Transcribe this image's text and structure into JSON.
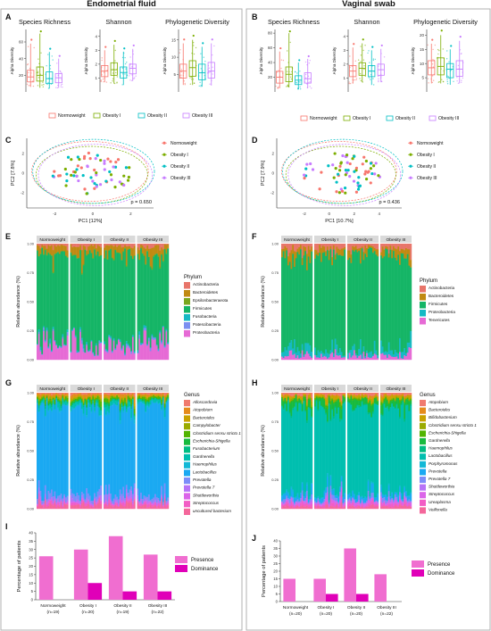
{
  "headers": {
    "left": "Endometrial fluid",
    "right": "Vaginal swab"
  },
  "panel_letters": {
    "A": "A",
    "B": "B",
    "C": "C",
    "D": "D",
    "E": "E",
    "F": "F",
    "G": "G",
    "H": "H",
    "I": "I",
    "J": "J"
  },
  "groups": [
    "Normoweight",
    "Obesity I",
    "Obesity II",
    "Obesity III"
  ],
  "group_colors": [
    "#f8766d",
    "#7cae00",
    "#00bfc4",
    "#c77cff"
  ],
  "alpha": {
    "titles": [
      "Species Richness",
      "Shannon",
      "Phylogenetic Diversity"
    ],
    "ylabel": "Alpha Diversity",
    "left": {
      "richness": {
        "ticks": [
          "20",
          "40",
          "60"
        ],
        "ylim": [
          0,
          75
        ],
        "boxes": [
          [
            6,
            12,
            18,
            26,
            58
          ],
          [
            5,
            13,
            20,
            30,
            70
          ],
          [
            4,
            10,
            16,
            24,
            48
          ],
          [
            5,
            11,
            17,
            22,
            40
          ]
        ]
      },
      "shannon": {
        "ticks": [
          "1",
          "2",
          "3",
          "4"
        ],
        "ylim": [
          0,
          4.5
        ],
        "boxes": [
          [
            0.7,
            1.1,
            1.5,
            1.9,
            3.0
          ],
          [
            0.6,
            1.2,
            1.6,
            2.1,
            3.4
          ],
          [
            0.5,
            1.0,
            1.4,
            1.8,
            2.9
          ],
          [
            0.8,
            1.3,
            1.7,
            2.0,
            3.1
          ]
        ]
      },
      "pd": {
        "ticks": [
          "5",
          "10",
          "15"
        ],
        "ylim": [
          0,
          18
        ],
        "boxes": [
          [
            2,
            4,
            6,
            8,
            14
          ],
          [
            2,
            4.5,
            7,
            9,
            15
          ],
          [
            1.5,
            3.5,
            5.5,
            8,
            13
          ],
          [
            2,
            4,
            6,
            8.5,
            14
          ]
        ]
      }
    },
    "right": {
      "richness": {
        "ticks": [
          "20",
          "40",
          "60",
          "80"
        ],
        "ylim": [
          0,
          85
        ],
        "boxes": [
          [
            5,
            12,
            20,
            28,
            55
          ],
          [
            6,
            14,
            24,
            34,
            80
          ],
          [
            4,
            10,
            16,
            22,
            40
          ],
          [
            5,
            12,
            18,
            26,
            45
          ]
        ]
      },
      "shannon": {
        "ticks": [
          "1",
          "2",
          "3",
          "4"
        ],
        "ylim": [
          0,
          4.5
        ],
        "boxes": [
          [
            0.6,
            1.1,
            1.5,
            1.9,
            3.2
          ],
          [
            0.7,
            1.2,
            1.7,
            2.1,
            3.5
          ],
          [
            0.5,
            1.1,
            1.5,
            1.9,
            3.0
          ],
          [
            0.7,
            1.2,
            1.6,
            2.0,
            3.1
          ]
        ]
      },
      "pd": {
        "ticks": [
          "5",
          "10",
          "15",
          "20"
        ],
        "ylim": [
          0,
          22
        ],
        "boxes": [
          [
            3,
            6,
            8.5,
            11,
            17
          ],
          [
            3,
            6,
            9,
            12,
            20
          ],
          [
            2.5,
            5,
            8,
            10,
            15
          ],
          [
            3,
            5.5,
            8,
            11,
            18
          ]
        ]
      }
    }
  },
  "pcoa": {
    "left": {
      "xlabel": "PC1  [12%]",
      "ylabel": "PC2  [7.8%]",
      "p": "p = 0.650",
      "xticks": [
        "-2",
        "0",
        "2"
      ],
      "yticks": [
        "2",
        "0",
        "-2"
      ]
    },
    "right": {
      "xlabel": "PC1  [10.7%]",
      "ylabel": "PC2  [7.9%]",
      "p": "p = 0.436",
      "xticks": [
        "-2",
        "0",
        "2",
        "4"
      ],
      "yticks": [
        "2",
        "0",
        "-2"
      ]
    }
  },
  "phylum": {
    "ylabel": "Relative abundance (%)",
    "title": "Phylum",
    "yticks": [
      "1.00",
      "0.75",
      "0.50",
      "0.25",
      "0.00"
    ],
    "left": {
      "taxa": [
        "Actinobacteria",
        "Bacteroidetes",
        "Epsilonbacteraeota",
        "Firmicutes",
        "Fusobacteria",
        "Patescibacteria",
        "Proteobacteria"
      ],
      "colors": [
        "#e8756a",
        "#c08a12",
        "#7aa71e",
        "#15b566",
        "#16b9c4",
        "#7b8ff0",
        "#e66ad5"
      ],
      "fractions": [
        0.02,
        0.06,
        0.005,
        0.78,
        0.01,
        0.01,
        0.115
      ]
    },
    "right": {
      "taxa": [
        "Actinobacteria",
        "Bacteroidetes",
        "Firmicutes",
        "Proteobacteria",
        "Tenericutes"
      ],
      "colors": [
        "#e8756a",
        "#c08a12",
        "#15b566",
        "#16b9c4",
        "#e66ad5"
      ],
      "fractions": [
        0.04,
        0.06,
        0.82,
        0.05,
        0.03
      ]
    }
  },
  "genus": {
    "ylabel": "Relative abundance (%)",
    "title": "Genus",
    "yticks": [
      "1.00",
      "0.75",
      "0.50",
      "0.25",
      "0.00"
    ],
    "left": {
      "taxa": [
        "Alloscardovia",
        "Atopobium",
        "Bacteroides",
        "Campylobacter",
        "Clostridium sensu stricto 1",
        "Escherichia-Shigella",
        "Fusobacterium",
        "Gardnerella",
        "Haemophilus",
        "Lactobacillus",
        "Prevotella",
        "Prevotella 7",
        "Shuttleworthia",
        "Streptococcus",
        "uncultured bacterium"
      ],
      "colors": [
        "#f07a6e",
        "#e58b1c",
        "#c9a200",
        "#9aab00",
        "#52b400",
        "#18ba3e",
        "#00bd83",
        "#00bfaf",
        "#12b8d6",
        "#1aa9f2",
        "#7d8df9",
        "#b773f7",
        "#db64e9",
        "#f25dc5",
        "#f4679b"
      ],
      "fractions": [
        0.01,
        0.02,
        0.01,
        0.01,
        0.02,
        0.01,
        0.01,
        0.03,
        0.01,
        0.75,
        0.04,
        0.02,
        0.01,
        0.02,
        0.03
      ]
    },
    "right": {
      "taxa": [
        "Atopobium",
        "Bacteroides",
        "Bifidobacterium",
        "Clostridium sensu stricto 1",
        "Escherichia-Shigella",
        "Gardnerella",
        "Haemophilus",
        "Lactobacillus",
        "Porphyromonas",
        "Prevotella",
        "Prevotella 7",
        "Shuttleworthia",
        "Streptococcus",
        "Ureaplasma",
        "Veillonella"
      ],
      "colors": [
        "#f07a6e",
        "#e58b1c",
        "#c9a200",
        "#9aab00",
        "#52b400",
        "#18ba3e",
        "#00bd83",
        "#00bfaf",
        "#12b8d6",
        "#1aa9f2",
        "#7d8df9",
        "#b773f7",
        "#db64e9",
        "#f25dc5",
        "#f4679b"
      ],
      "fractions": [
        0.02,
        0.01,
        0.02,
        0.01,
        0.01,
        0.06,
        0.01,
        0.72,
        0.01,
        0.04,
        0.02,
        0.01,
        0.02,
        0.02,
        0.02
      ]
    }
  },
  "chart_data": [
    {
      "type": "bar",
      "panel": "I",
      "categories": [
        "Normoweight\n(n=19)",
        "Obesity I\n(n=20)",
        "Obesity II\n(n=19)",
        "Obesity III\n(n=22)"
      ],
      "series": [
        {
          "name": "Presence",
          "values": [
            26,
            30,
            38,
            27
          ]
        },
        {
          "name": "Dominance",
          "values": [
            0,
            10,
            5,
            5
          ]
        }
      ],
      "ylabel": "Percentage of patients",
      "ylim": [
        0,
        40
      ],
      "yticks": [
        "0",
        "5",
        "10",
        "15",
        "20",
        "25",
        "30",
        "35",
        "40"
      ],
      "colors": [
        "#f06ed0",
        "#e000b8"
      ]
    },
    {
      "type": "bar",
      "panel": "J",
      "categories": [
        "Normoweight\n(n=20)",
        "Obesity I\n(n=20)",
        "Obesity II\n(n=20)",
        "Obesity III\n(n=22)"
      ],
      "series": [
        {
          "name": "Presence",
          "values": [
            15,
            15,
            35,
            18
          ]
        },
        {
          "name": "Dominance",
          "values": [
            0,
            5,
            5,
            0
          ]
        }
      ],
      "ylabel": "Percentage of patients",
      "ylim": [
        0,
        40
      ],
      "yticks": [
        "0",
        "5",
        "10",
        "15",
        "20",
        "25",
        "30",
        "35",
        "40"
      ],
      "colors": [
        "#f06ed0",
        "#e000b8"
      ]
    }
  ]
}
